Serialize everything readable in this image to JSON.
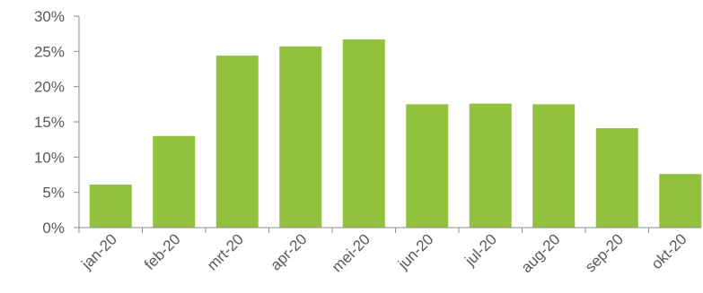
{
  "chart_data": {
    "type": "bar",
    "title": "",
    "xlabel": "",
    "ylabel": "",
    "categories": [
      "jan-20",
      "feb-20",
      "mrt-20",
      "apr-20",
      "mei-20",
      "jun-20",
      "jul-20",
      "aug-20",
      "sep-20",
      "okt-20"
    ],
    "values": [
      6.1,
      13.0,
      24.4,
      25.7,
      26.7,
      17.5,
      17.6,
      17.5,
      14.1,
      7.6
    ],
    "ylim": [
      0,
      30
    ],
    "y_ticks": [
      0,
      5,
      10,
      15,
      20,
      25,
      30
    ],
    "y_tick_labels": [
      "0%",
      "5%",
      "10%",
      "15%",
      "20%",
      "25%",
      "30%"
    ],
    "grid": false,
    "legend": "none",
    "bar_color": "#92c13e",
    "axis_color": "#8c8c8c",
    "label_color": "#595959"
  }
}
